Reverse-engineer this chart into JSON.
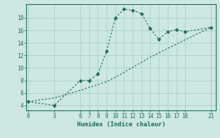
{
  "xlabel": "Humidex (Indice chaleur)",
  "bg_color": "#cde8e2",
  "line_color": "#1a6b5a",
  "grid_color": "#afd0ca",
  "line1_x": [
    0,
    3,
    6,
    7,
    8,
    9,
    10,
    11,
    12,
    13,
    14,
    15,
    16,
    17,
    18,
    21
  ],
  "line1_y": [
    4.6,
    4.0,
    8.0,
    8.0,
    9.0,
    12.7,
    18.0,
    19.4,
    19.2,
    18.7,
    16.3,
    14.6,
    15.8,
    16.1,
    15.8,
    16.5
  ],
  "line2_x": [
    0,
    3,
    6,
    7,
    8,
    9,
    10,
    11,
    12,
    13,
    14,
    15,
    16,
    17,
    18,
    21
  ],
  "line2_y": [
    4.6,
    5.2,
    6.4,
    6.9,
    7.3,
    7.8,
    8.5,
    9.3,
    10.1,
    10.9,
    11.7,
    12.4,
    13.1,
    13.8,
    14.5,
    16.5
  ],
  "xticks": [
    0,
    3,
    6,
    7,
    8,
    9,
    10,
    11,
    12,
    13,
    14,
    15,
    16,
    17,
    18,
    21
  ],
  "yticks": [
    4,
    6,
    8,
    10,
    12,
    14,
    16,
    18
  ],
  "xlim": [
    -0.2,
    21.5
  ],
  "ylim": [
    3.2,
    20.2
  ]
}
